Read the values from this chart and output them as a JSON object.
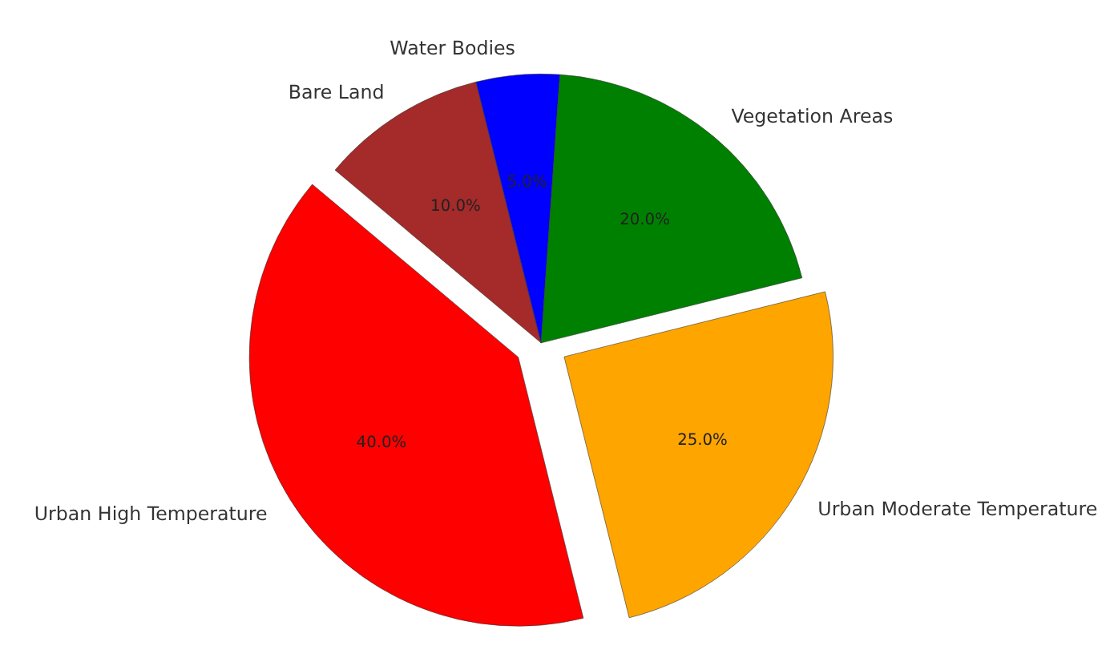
{
  "chart_data": {
    "type": "pie",
    "categories": [
      "Urban High Temperature",
      "Urban Moderate Temperature",
      "Vegetation Areas",
      "Water Bodies",
      "Bare Land"
    ],
    "values": [
      40,
      25,
      20,
      5,
      10
    ],
    "colors": [
      "#ff0000",
      "#ffa500",
      "#008000",
      "#0000ff",
      "#a52a2a"
    ],
    "value_labels": [
      "40.0%",
      "25.0%",
      "20.0%",
      "5.0%",
      "10.0%"
    ],
    "legend": false
  }
}
